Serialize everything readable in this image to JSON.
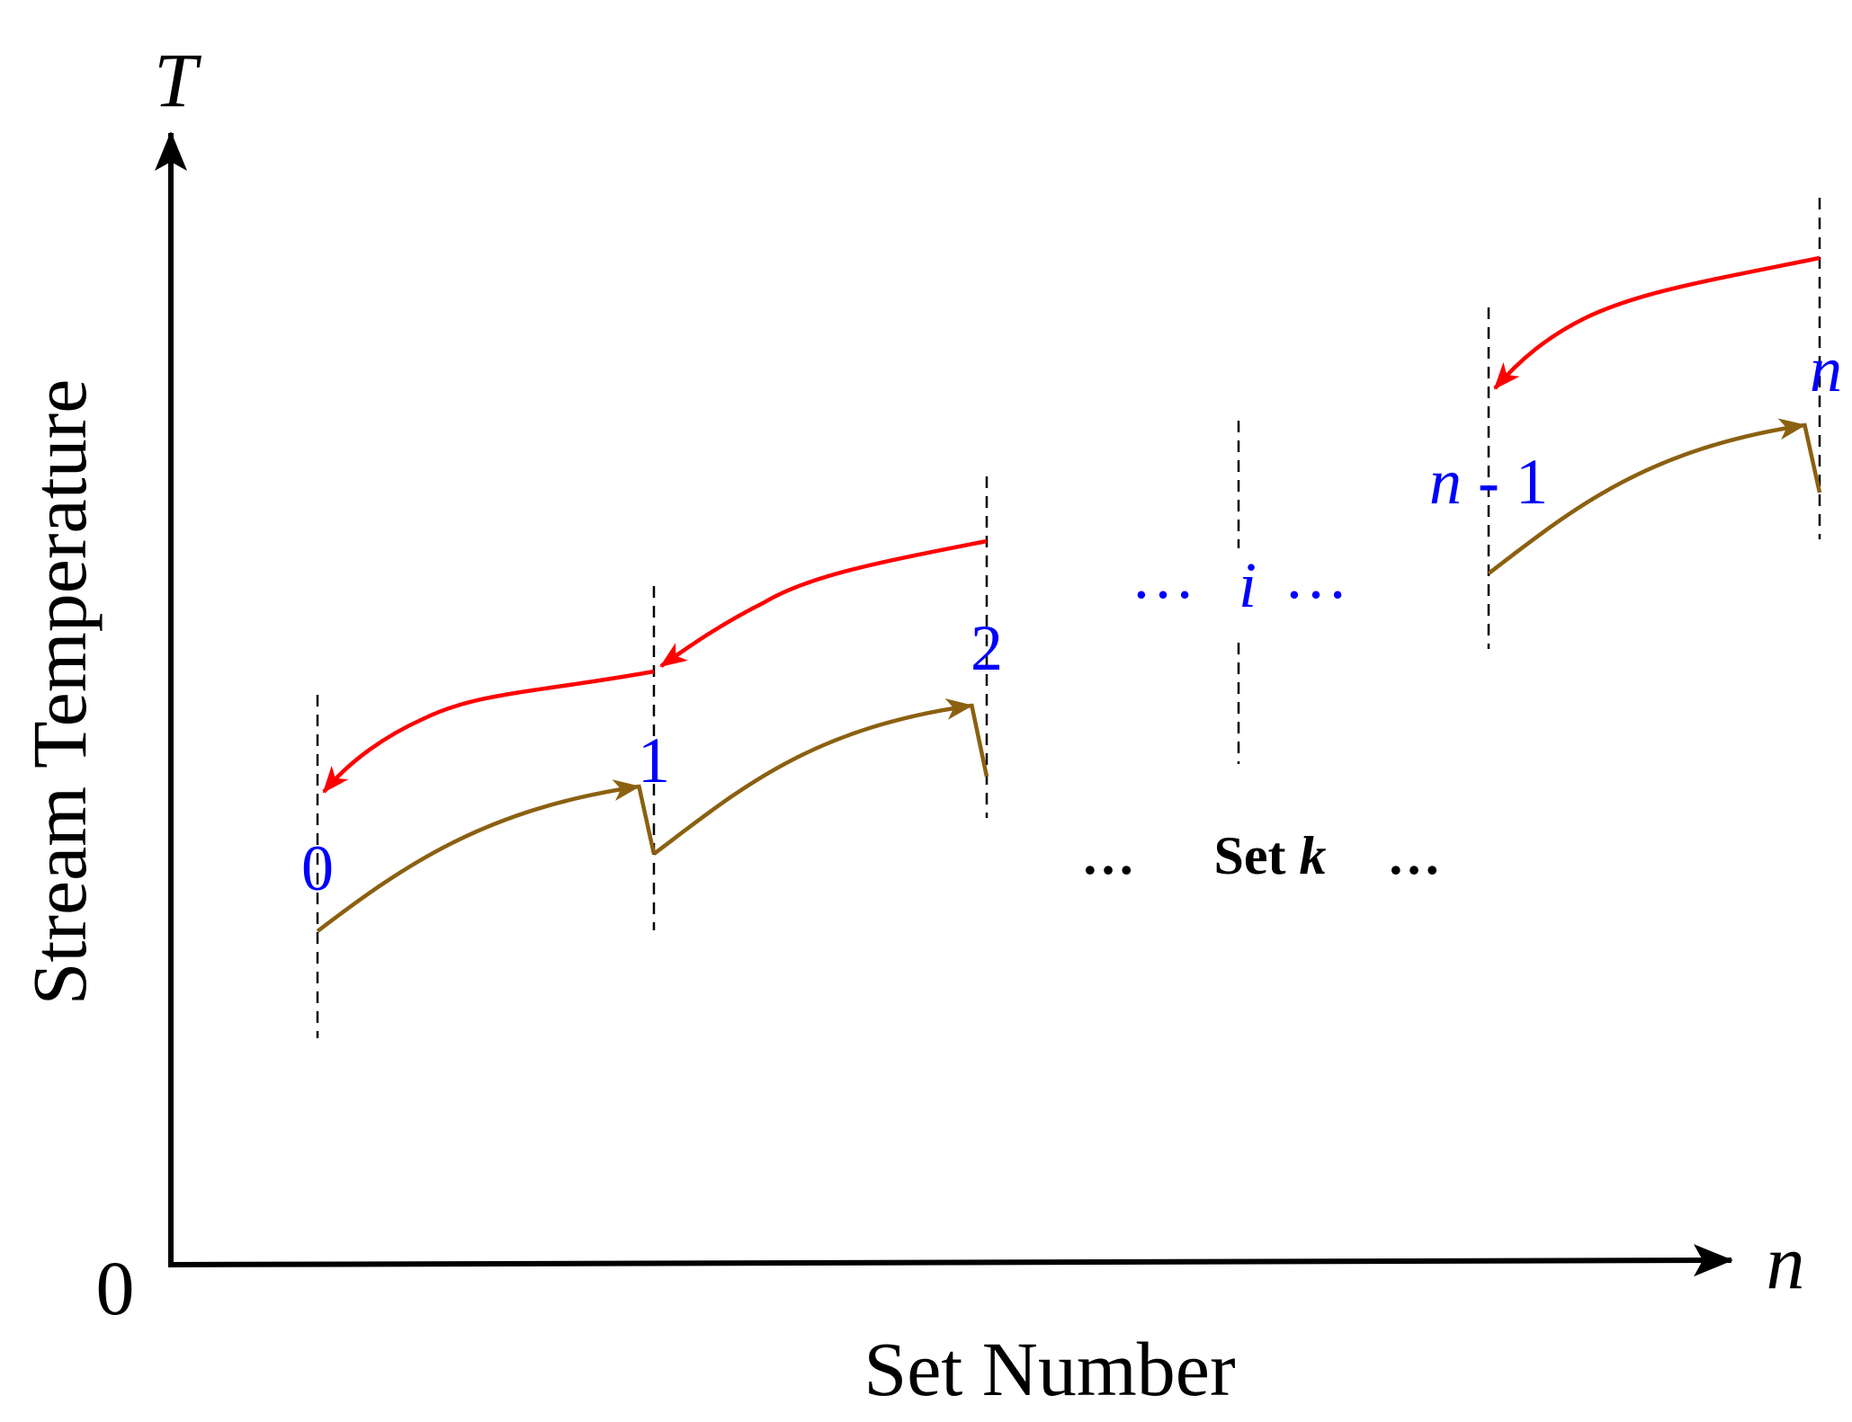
{
  "axes": {
    "y_symbol": "T",
    "x_symbol": "n",
    "origin_label": "0",
    "y_title": "Stream Temperature",
    "x_title": "Set Number"
  },
  "stations": {
    "s0": "0",
    "s1": "1",
    "s2": "2",
    "si_mid": "i",
    "sn1_var": "n",
    "sn1_rest": " - 1",
    "sn": "n"
  },
  "set_label": {
    "prefix": "Set ",
    "var": "k"
  },
  "ellipsis": "…",
  "colors": {
    "hot_stream": "#ff0000",
    "cold_stream": "#8b6010",
    "station_label": "#0000ff",
    "axis": "#000000",
    "boundary": "#000000"
  }
}
